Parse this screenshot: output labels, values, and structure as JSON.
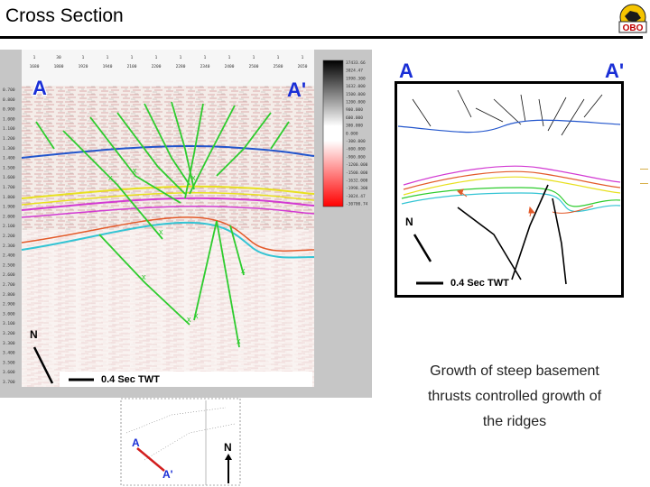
{
  "header": {
    "title": "Cross Section",
    "logo_text": "OBO"
  },
  "seismic_panel": {
    "label_start": "A",
    "label_end": "A'",
    "north_label": "N",
    "scale_label": "0.4 Sec TWT",
    "time_ticks": [
      "0.700",
      "0.800",
      "0.900",
      "1.000",
      "1.100",
      "1.200",
      "1.300",
      "1.400",
      "1.500",
      "1.600",
      "1.700",
      "1.800",
      "1.900",
      "2.000",
      "2.100",
      "2.200",
      "2.300",
      "2.400",
      "2.500",
      "2.600",
      "2.700",
      "2.800",
      "2.900",
      "3.000",
      "3.100",
      "3.200",
      "3.300",
      "3.400",
      "3.500",
      "3.600",
      "3.700"
    ],
    "trace_header_top": [
      "1",
      "30",
      "1",
      "1",
      "1",
      "1",
      "1",
      "1",
      "1",
      "1",
      "1",
      "1"
    ],
    "trace_header_bottom": [
      "1680",
      "1800",
      "1920",
      "1940",
      "2100",
      "2200",
      "2280",
      "2340",
      "2400",
      "2500",
      "2580",
      "2650"
    ],
    "colorbar_values": [
      "37433.66",
      "3024.47",
      "1998.300",
      "1632.000",
      "1500.000",
      "1200.000",
      "900.000",
      "600.000",
      "300.000",
      "0.000",
      "-300.000",
      "-600.000",
      "-900.000",
      "-1200.000",
      "-1500.000",
      "-1632.000",
      "-1998.300",
      "-3024.47",
      "-30700.74"
    ]
  },
  "index_map": {
    "label_start": "A",
    "label_end": "A'",
    "north_label": "N"
  },
  "interpretation_panel": {
    "label_start": "A",
    "label_end": "A'",
    "north_label": "N",
    "scale_label": "0.4 Sec TWT"
  },
  "caption_lines": [
    "Growth of steep basement",
    "thrusts controlled growth of",
    "the ridges"
  ],
  "colors": {
    "label_blue": "#1a2fd6",
    "fault_green": "#2ecc2e",
    "horizon_blue": "#2255cc",
    "horizon_yellow": "#e8e020",
    "horizon_magenta": "#d23ad2",
    "horizon_cyan": "#33c4d4",
    "section_line_red": "#d21e1e"
  }
}
